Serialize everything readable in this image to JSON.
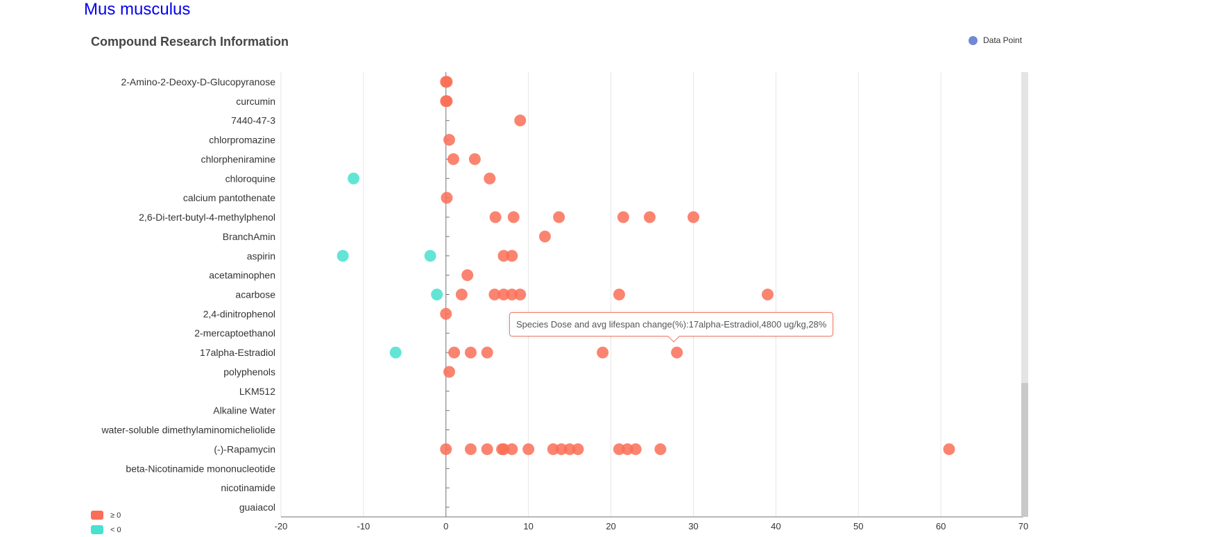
{
  "species": "Mus musculus",
  "title": "Compound Research Information",
  "legend": {
    "label": "Data Point",
    "color": "#7088d6"
  },
  "visual_map": [
    {
      "label": "≥ 0",
      "color": "#fa6e57"
    },
    {
      "label": "< 0",
      "color": "#48e0cf"
    }
  ],
  "tooltip": "Species Dose and avg lifespan change(%):17alpha-Estradiol,4800 ug/kg,28%",
  "chart_data": {
    "type": "scatter",
    "title": "Compound Research Information",
    "legend_placement": "top-right",
    "grid_x": true,
    "xlim": [
      -20,
      70
    ],
    "x_ticks": [
      "-20",
      "-10",
      "0",
      "10",
      "20",
      "30",
      "40",
      "50",
      "60",
      "70"
    ],
    "categories": [
      "2-Amino-2-Deoxy-D-Glucopyranose",
      "curcumin",
      "7440-47-3",
      "chlorpromazine",
      "chlorpheniramine",
      "chloroquine",
      "calcium pantothenate",
      "2,6-Di-tert-butyl-4-methylphenol",
      "BranchAmin",
      "aspirin",
      "acetaminophen",
      "acarbose",
      "2,4-dinitrophenol",
      "2-mercaptoethanol",
      "17alpha-Estradiol",
      "polyphenols",
      "LKM512",
      "Alkaline Water",
      "water-soluble dimethylaminomicheliolide",
      "(-)-Rapamycin",
      "beta-Nicotinamide mononucleotide",
      "nicotinamide",
      "guaiacol"
    ],
    "points": [
      {
        "category": "2-Amino-2-Deoxy-D-Glucopyranose",
        "x": [
          0,
          0.1
        ]
      },
      {
        "category": "curcumin",
        "x": [
          0,
          0.1
        ]
      },
      {
        "category": "7440-47-3",
        "x": [
          9
        ]
      },
      {
        "category": "chlorpromazine",
        "x": [
          0.4
        ]
      },
      {
        "category": "chlorpheniramine",
        "x": [
          0.9,
          3.5
        ]
      },
      {
        "category": "chloroquine",
        "x": [
          -11.2,
          5.3
        ]
      },
      {
        "category": "calcium pantothenate",
        "x": [
          0.1
        ]
      },
      {
        "category": "2,6-Di-tert-butyl-4-methylphenol",
        "x": [
          6,
          8.2,
          13.7,
          21.5,
          24.7,
          30
        ]
      },
      {
        "category": "BranchAmin",
        "x": [
          12
        ]
      },
      {
        "category": "aspirin",
        "x": [
          -12.5,
          -1.9,
          7,
          8
        ]
      },
      {
        "category": "acetaminophen",
        "x": [
          2.6
        ]
      },
      {
        "category": "acarbose",
        "x": [
          -1.1,
          1.9,
          5.9,
          7,
          8,
          9,
          21,
          39
        ]
      },
      {
        "category": "2,4-dinitrophenol",
        "x": [
          0
        ]
      },
      {
        "category": "2-mercaptoethanol",
        "x": []
      },
      {
        "category": "17alpha-Estradiol",
        "x": [
          -6.1,
          1,
          3,
          5,
          19,
          28
        ]
      },
      {
        "category": "polyphenols",
        "x": [
          0.4
        ]
      },
      {
        "category": "LKM512",
        "x": []
      },
      {
        "category": "Alkaline Water",
        "x": []
      },
      {
        "category": "water-soluble dimethylaminomicheliolide",
        "x": []
      },
      {
        "category": "(-)-Rapamycin",
        "x": [
          0,
          3,
          5,
          6.8,
          7,
          8,
          10,
          13,
          14,
          15,
          16,
          21,
          22,
          23,
          26,
          61
        ]
      },
      {
        "category": "beta-Nicotinamide mononucleotide",
        "x": []
      },
      {
        "category": "nicotinamide",
        "x": []
      },
      {
        "category": "guaiacol",
        "x": []
      }
    ],
    "colors": {
      "positive": "#fa6e57",
      "negative": "#48e0cf",
      "grid": "#e6e6e6",
      "axis": "#6e7079"
    }
  }
}
